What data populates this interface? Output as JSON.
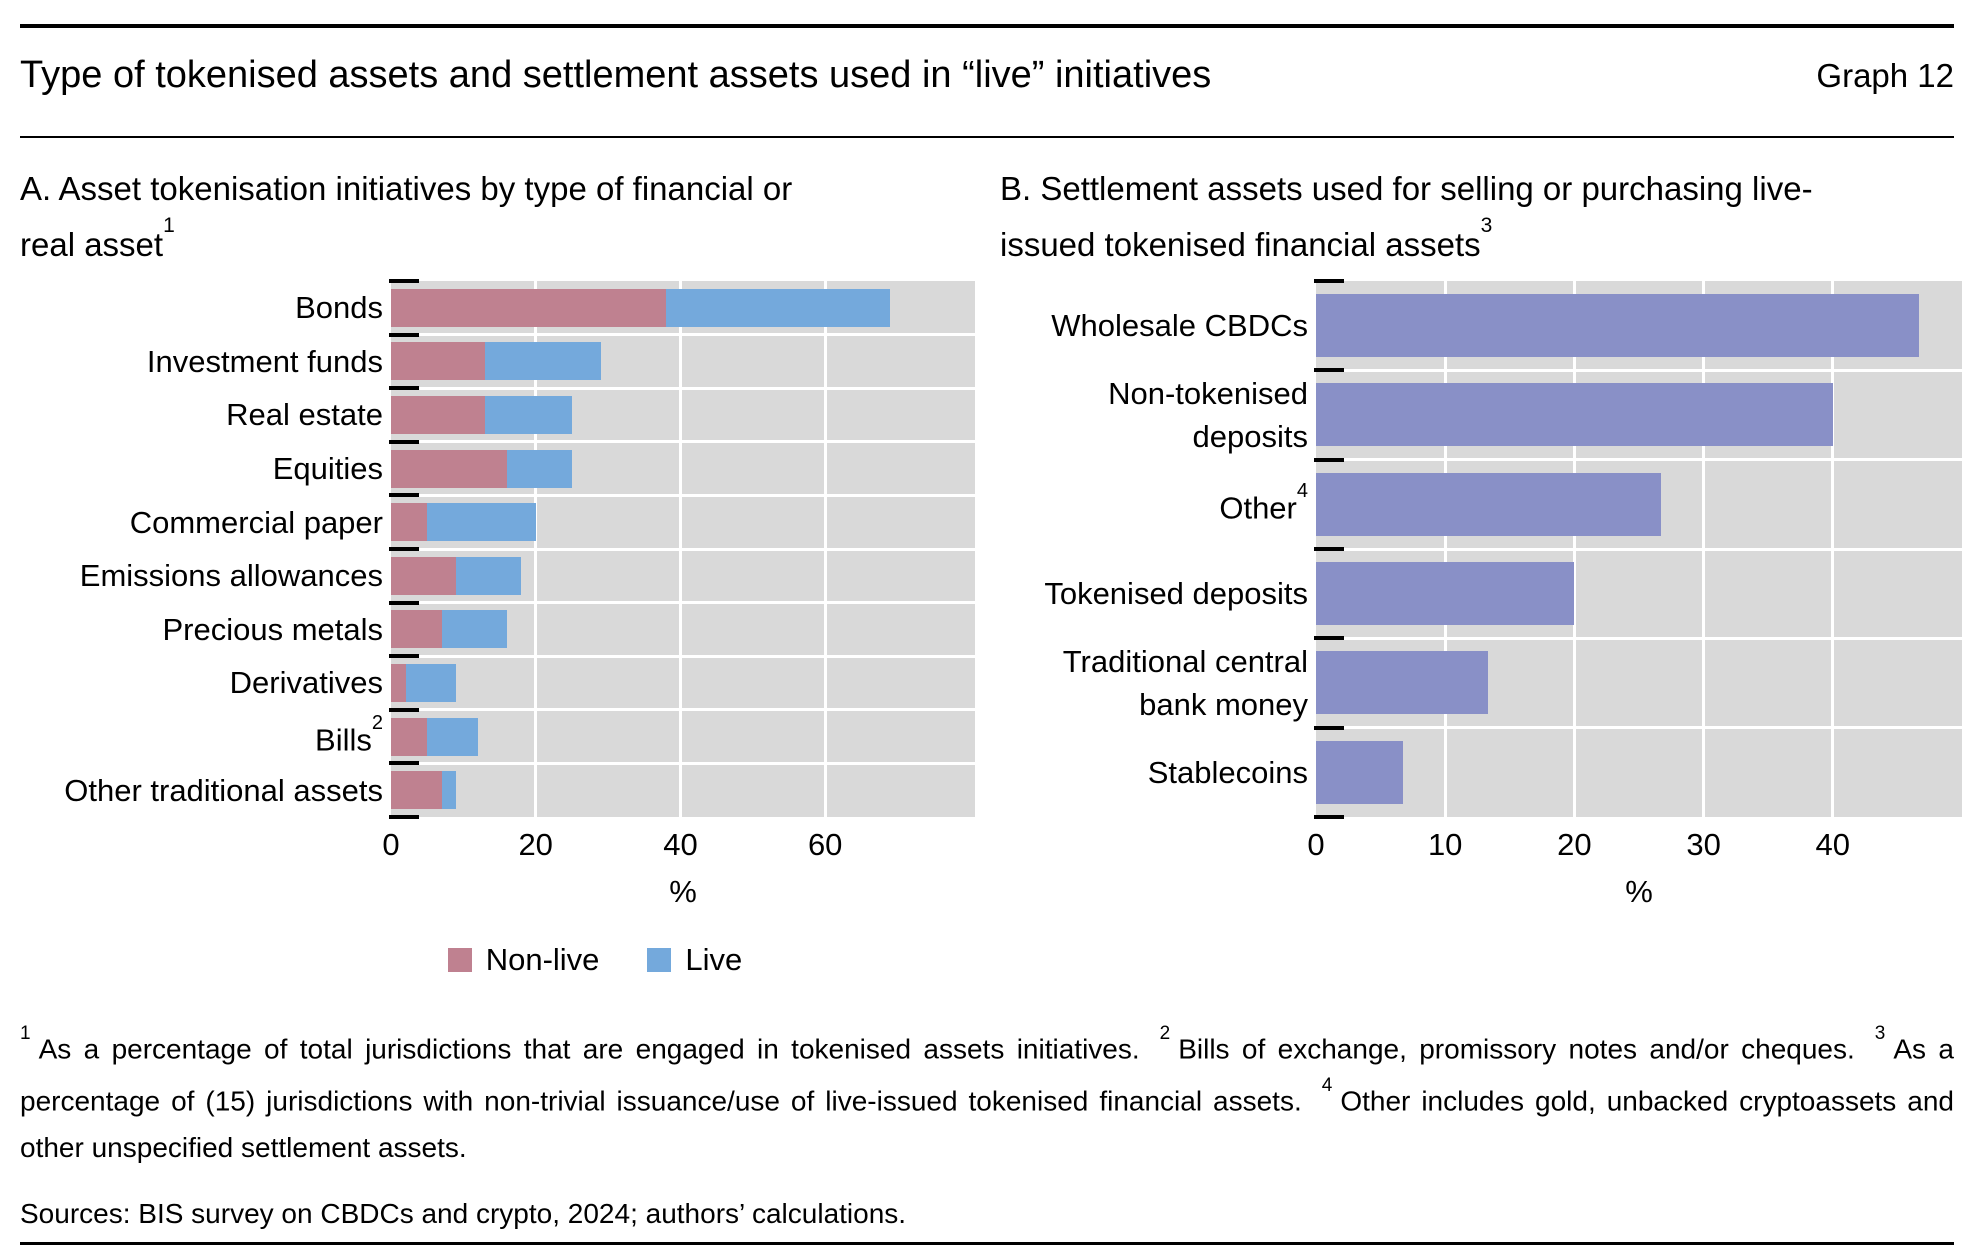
{
  "title": "Type of tokenised assets and settlement assets used in “live” initiatives",
  "graph_label": "Graph 12",
  "colors": {
    "non_live": "#bf8190",
    "live": "#74a9dc",
    "settlement": "#8990c7",
    "plot_bg": "#d9d9d9",
    "grid": "#ffffff",
    "tick": "#000000"
  },
  "panel_a_heading": {
    "line1": "A. Asset tokenisation initiatives by type of financial or",
    "line2": "real asset",
    "sup": "1"
  },
  "panel_b_heading": {
    "line1": "B. Settlement assets used for selling or purchasing live-",
    "line2": "issued tokenised financial assets",
    "sup": "3"
  },
  "chart_data": [
    {
      "id": "panel_a",
      "type": "bar",
      "orientation": "horizontal",
      "stacked": true,
      "title": "A. Asset tokenisation initiatives by type of financial or real asset",
      "title_footnote_marker": "1",
      "categories": [
        {
          "lines": [
            "Bonds"
          ]
        },
        {
          "lines": [
            "Investment funds"
          ]
        },
        {
          "lines": [
            "Real estate"
          ]
        },
        {
          "lines": [
            "Equities"
          ]
        },
        {
          "lines": [
            "Commercial paper"
          ]
        },
        {
          "lines": [
            "Emissions allowances"
          ]
        },
        {
          "lines": [
            "Precious metals"
          ]
        },
        {
          "lines": [
            "Derivatives"
          ]
        },
        {
          "lines": [
            "Bills"
          ],
          "sup": "2"
        },
        {
          "lines": [
            "Other traditional assets"
          ]
        }
      ],
      "series": [
        {
          "name": "Non-live",
          "key": "non-live",
          "color_key": "non_live",
          "values": [
            38,
            13,
            13,
            16,
            5,
            9,
            7,
            2,
            5,
            7
          ]
        },
        {
          "name": "Live",
          "key": "live",
          "color_key": "live",
          "values": [
            31,
            16,
            12,
            9,
            15,
            9,
            9,
            7,
            7,
            2
          ]
        }
      ],
      "x_ticks": [
        0,
        20,
        40,
        60
      ],
      "xlim": [
        0,
        80.7
      ],
      "xlabel": "%",
      "grid": true,
      "legend_position": "bottom"
    },
    {
      "id": "panel_b",
      "type": "bar",
      "orientation": "horizontal",
      "stacked": false,
      "title": "B. Settlement assets used for selling or purchasing live-issued tokenised financial assets",
      "title_footnote_marker": "3",
      "categories": [
        {
          "lines": [
            "Wholesale CBDCs"
          ]
        },
        {
          "lines": [
            "Non-tokenised",
            "deposits"
          ]
        },
        {
          "lines": [
            "Other"
          ],
          "sup": "4"
        },
        {
          "lines": [
            "Tokenised deposits"
          ]
        },
        {
          "lines": [
            "Traditional central",
            "bank money"
          ]
        },
        {
          "lines": [
            "Stablecoins"
          ]
        }
      ],
      "series": [
        {
          "key": "settlement",
          "color_key": "settlement",
          "values": [
            46.7,
            40,
            26.7,
            20,
            13.3,
            6.7
          ]
        }
      ],
      "x_ticks": [
        0,
        10,
        20,
        30,
        40
      ],
      "xlim": [
        0,
        50
      ],
      "xlabel": "%",
      "grid": true
    }
  ],
  "legend": {
    "items": [
      {
        "label": "Non-live",
        "color_key": "non_live"
      },
      {
        "label": "Live",
        "color_key": "live"
      }
    ]
  },
  "footnotes": [
    {
      "marker": "1",
      "text": "As a percentage of total jurisdictions that are engaged in tokenised assets initiatives."
    },
    {
      "marker": "2",
      "text": "Bills of exchange, promissory notes and/or cheques."
    },
    {
      "marker": "3",
      "text": "As a percentage of (15) jurisdictions with non-trivial issuance/use of live-issued tokenised financial assets."
    },
    {
      "marker": "4",
      "text": "Other includes gold, unbacked cryptoassets and other unspecified settlement assets."
    }
  ],
  "sources": "Sources: BIS survey on CBDCs and crypto, 2024; authors’ calculations."
}
